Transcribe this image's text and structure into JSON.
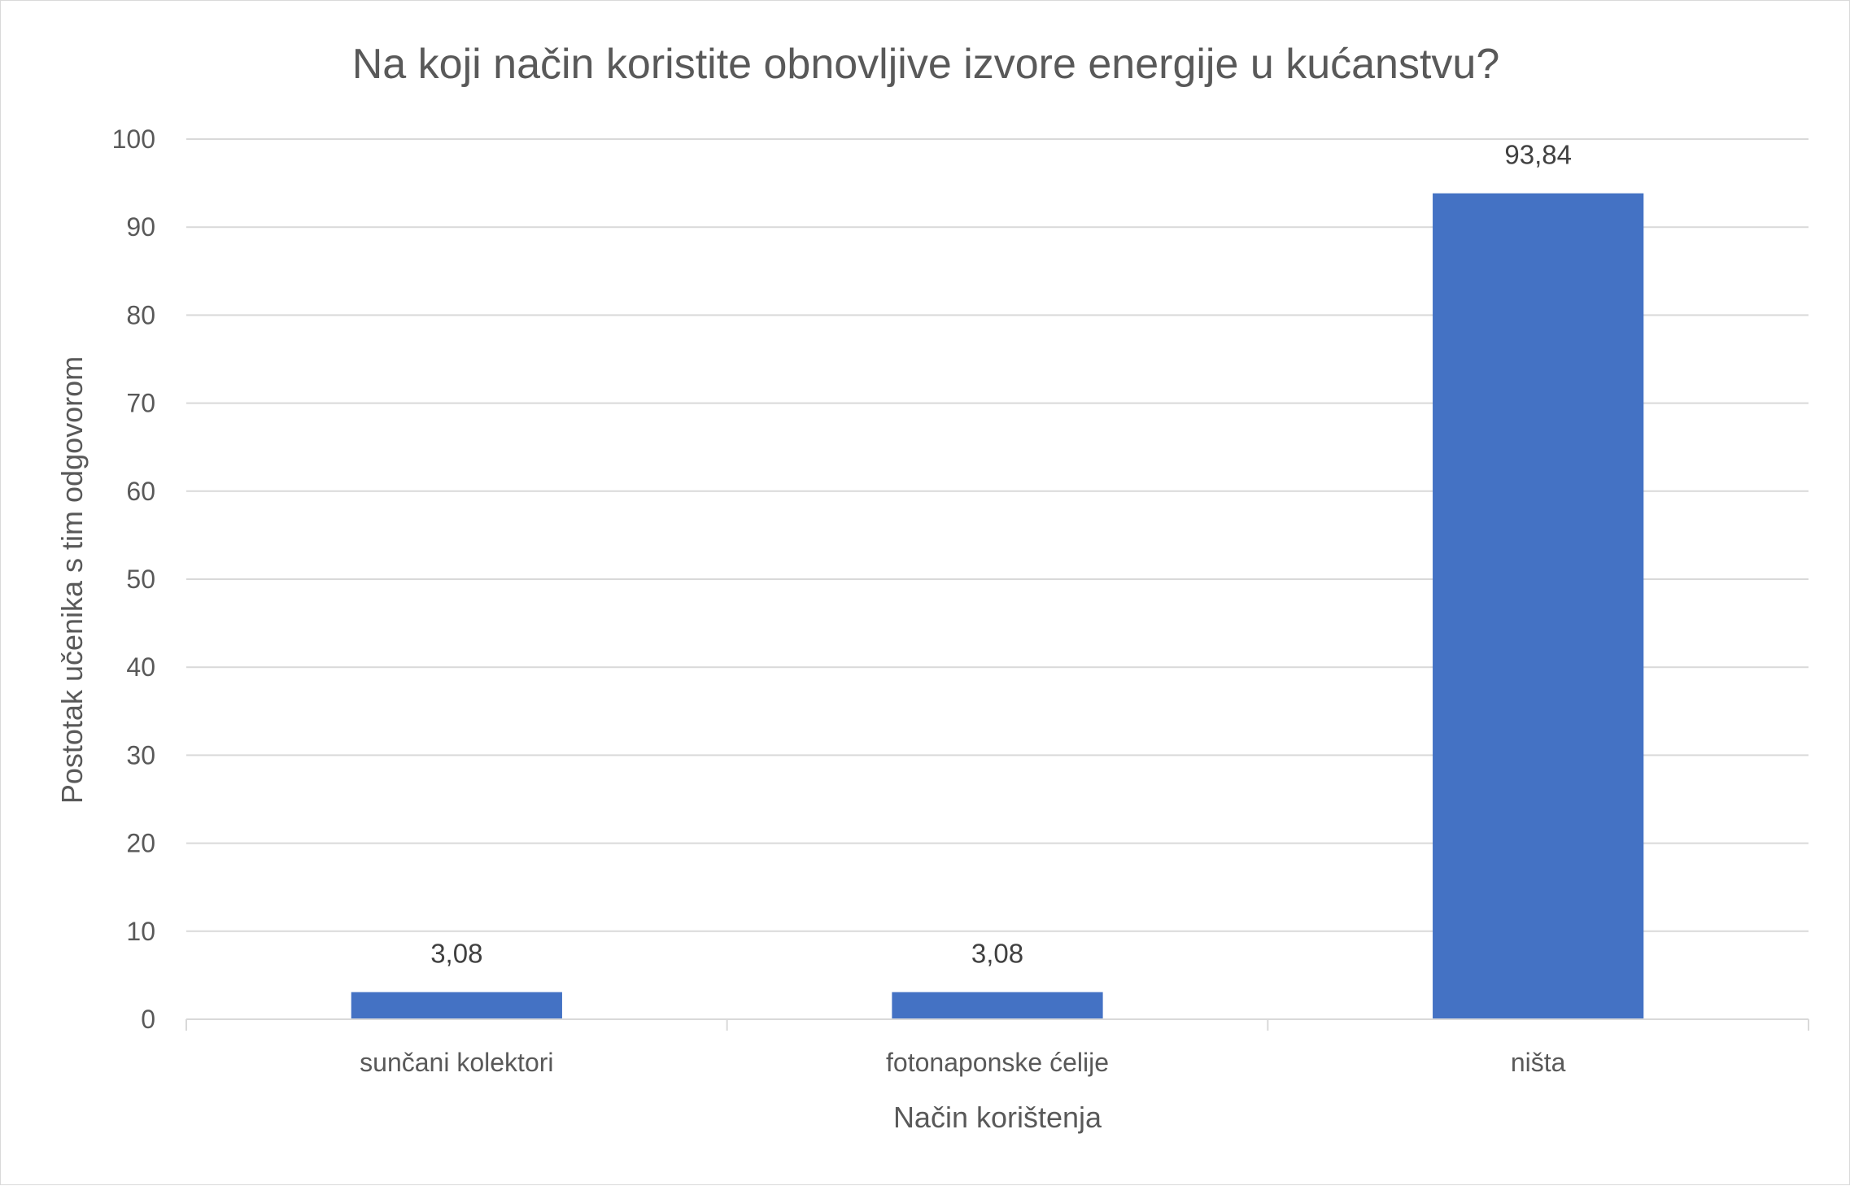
{
  "chart_data": {
    "type": "bar",
    "title": "Na koji način koristite obnovljive izvore energije u kućanstvu?",
    "xlabel": "Način korištenja",
    "ylabel": "Postotak učenika s tim odgovorom",
    "categories": [
      "sunčani kolektori",
      "fotonaponske ćelije",
      "ništa"
    ],
    "values": [
      3.08,
      3.08,
      93.84
    ],
    "data_labels": [
      "3,08",
      "3,08",
      "93,84"
    ],
    "ylim": [
      0,
      100
    ],
    "yticks": [
      0,
      10,
      20,
      30,
      40,
      50,
      60,
      70,
      80,
      90,
      100
    ],
    "grid": true,
    "legend": "none",
    "bar_color": "#4472c4"
  }
}
